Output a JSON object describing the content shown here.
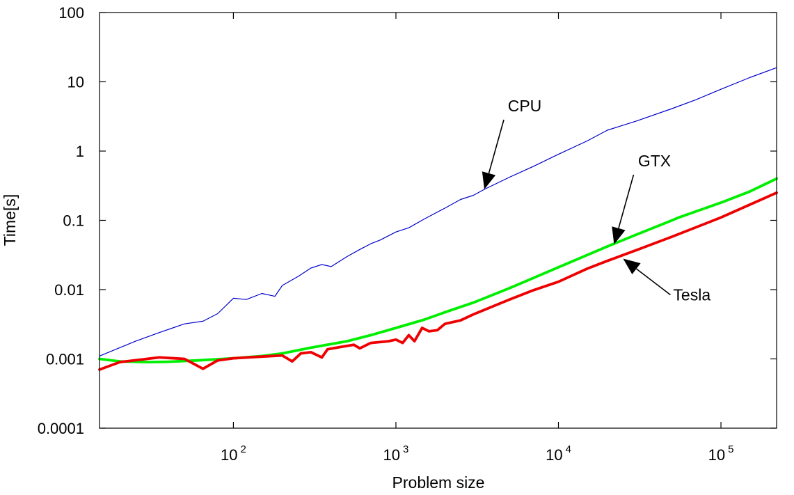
{
  "chart_data": {
    "type": "line",
    "title": "",
    "xlabel": "Problem size",
    "ylabel": "Time[s]",
    "xscale": "log",
    "yscale": "log",
    "xlim": [
      15,
      220000
    ],
    "ylim": [
      0.0001,
      100
    ],
    "grid": false,
    "legend": "none",
    "x_ticks": [
      {
        "value": 100,
        "base": "10",
        "exp": "2"
      },
      {
        "value": 1000,
        "base": "10",
        "exp": "3"
      },
      {
        "value": 10000,
        "base": "10",
        "exp": "4"
      },
      {
        "value": 100000,
        "base": "10",
        "exp": "5"
      }
    ],
    "y_ticks": [
      {
        "value": 100,
        "label": "100"
      },
      {
        "value": 10,
        "label": "10"
      },
      {
        "value": 1,
        "label": "1"
      },
      {
        "value": 0.1,
        "label": "0.1"
      },
      {
        "value": 0.01,
        "label": "0.01"
      },
      {
        "value": 0.001,
        "label": "0.001"
      },
      {
        "value": 0.0001,
        "label": "0.0001"
      }
    ],
    "series": [
      {
        "name": "CPU",
        "color": "#0000cc",
        "x": [
          15,
          25,
          35,
          50,
          65,
          80,
          100,
          120,
          150,
          180,
          200,
          250,
          300,
          350,
          400,
          500,
          600,
          700,
          800,
          1000,
          1200,
          1500,
          2000,
          2500,
          3000,
          3500,
          5000,
          7000,
          10000,
          15000,
          20000,
          30000,
          50000,
          70000,
          100000,
          150000,
          220000
        ],
        "y": [
          0.0011,
          0.0018,
          0.0024,
          0.0032,
          0.0035,
          0.0045,
          0.0075,
          0.0072,
          0.0088,
          0.008,
          0.0115,
          0.0155,
          0.0205,
          0.023,
          0.0215,
          0.03,
          0.038,
          0.046,
          0.052,
          0.068,
          0.078,
          0.105,
          0.15,
          0.2,
          0.23,
          0.28,
          0.42,
          0.6,
          0.9,
          1.4,
          2.0,
          2.7,
          4.1,
          5.5,
          7.8,
          11.5,
          16
        ]
      },
      {
        "name": "GTX",
        "color": "#00ee00",
        "x": [
          15,
          20,
          30,
          40,
          60,
          100,
          150,
          200,
          300,
          500,
          700,
          1000,
          1500,
          2000,
          3000,
          5000,
          10000,
          20000,
          30000,
          50000,
          55000,
          80000,
          100000,
          150000,
          220000
        ],
        "y": [
          0.001,
          0.00092,
          0.0009,
          0.00091,
          0.00095,
          0.00102,
          0.0011,
          0.0012,
          0.00145,
          0.0018,
          0.0022,
          0.0028,
          0.0037,
          0.0047,
          0.0065,
          0.0105,
          0.021,
          0.042,
          0.062,
          0.1,
          0.11,
          0.15,
          0.18,
          0.26,
          0.4
        ]
      },
      {
        "name": "Tesla",
        "color": "#ee0000",
        "x": [
          15,
          20,
          35,
          50,
          65,
          80,
          100,
          150,
          200,
          230,
          260,
          300,
          350,
          380,
          450,
          550,
          600,
          700,
          900,
          1000,
          1100,
          1200,
          1300,
          1450,
          1600,
          1800,
          2000,
          2500,
          3000,
          4000,
          5000,
          7000,
          10000,
          15000,
          20000,
          30000,
          50000,
          100000,
          220000
        ],
        "y": [
          0.0007,
          0.0009,
          0.00105,
          0.001,
          0.00072,
          0.00095,
          0.00102,
          0.00108,
          0.00112,
          0.00092,
          0.0012,
          0.00125,
          0.00105,
          0.00138,
          0.00148,
          0.0016,
          0.00142,
          0.0017,
          0.0018,
          0.0019,
          0.0017,
          0.0022,
          0.0018,
          0.0028,
          0.0025,
          0.0026,
          0.0032,
          0.0036,
          0.0044,
          0.0058,
          0.0072,
          0.0098,
          0.013,
          0.02,
          0.026,
          0.037,
          0.058,
          0.11,
          0.25
        ]
      }
    ],
    "annotations": [
      {
        "text": "CPU",
        "x": 3500,
        "y": 0.28,
        "label_side": "above"
      },
      {
        "text": "GTX",
        "x": 22000,
        "y": 0.045,
        "label_side": "above"
      },
      {
        "text": "Tesla",
        "x": 25000,
        "y": 0.028,
        "label_side": "right"
      }
    ]
  }
}
